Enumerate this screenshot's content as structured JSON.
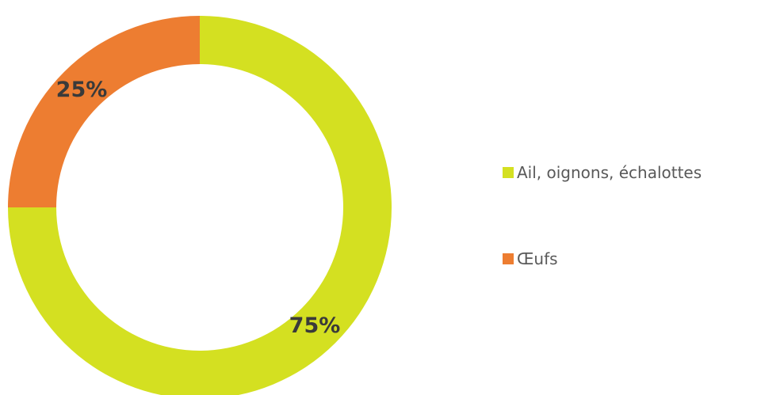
{
  "chart_data": {
    "type": "pie",
    "variant": "donut",
    "categories": [
      "Ail, oignons, échalottes",
      "Œufs"
    ],
    "values": [
      75,
      25
    ],
    "labels": [
      "75%",
      "25%"
    ],
    "colors": [
      "#D4E021",
      "#ED7D31"
    ],
    "legend_position": "right"
  },
  "legend": {
    "items": [
      {
        "label": "Ail, oignons, échalottes",
        "color": "#D4E021"
      },
      {
        "label": "Œufs",
        "color": "#ED7D31"
      }
    ]
  }
}
